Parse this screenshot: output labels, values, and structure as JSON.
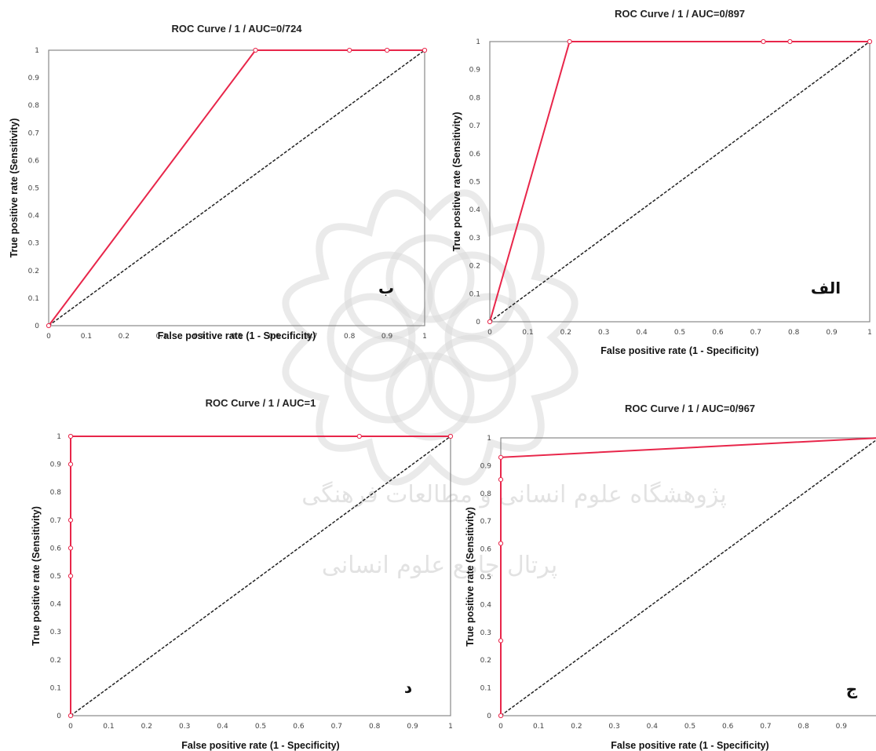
{
  "chart_data": [
    {
      "type": "line",
      "title": "ROC Curve / 1 / AUC=0/724",
      "xlabel": "False positive rate (1 - Specificity)",
      "ylabel": "True positive rate (Sensitivity)",
      "panel_letter": "ب",
      "xlim": [
        0,
        1
      ],
      "ylim": [
        0,
        1
      ],
      "x_ticks": [
        "0",
        "0.1",
        "0.2",
        "0.3",
        "0.4",
        "0.5",
        "0.6",
        "0.7",
        "0.8",
        "0.9",
        "1"
      ],
      "y_ticks": [
        "0",
        "0.1",
        "0.2",
        "0.3",
        "0.4",
        "0.5",
        "0.6",
        "0.7",
        "0.8",
        "0.9",
        "1"
      ],
      "roc_x": [
        0,
        0.55,
        0.8,
        0.9,
        1
      ],
      "roc_y": [
        0,
        1,
        1,
        1,
        1
      ]
    },
    {
      "type": "line",
      "title": "ROC Curve / 1 / AUC=0/897",
      "xlabel": "False positive rate (1 - Specificity)",
      "ylabel": "True positive rate (Sensitivity)",
      "panel_letter": "الف",
      "xlim": [
        0,
        1
      ],
      "ylim": [
        0,
        1
      ],
      "x_ticks": [
        "0",
        "0.1",
        "0.2",
        "0.3",
        "0.4",
        "0.5",
        "0.6",
        "0.7",
        "0.8",
        "0.9",
        "1"
      ],
      "y_ticks": [
        "0",
        "0.1",
        "0.2",
        "0.3",
        "0.4",
        "0.5",
        "0.6",
        "0.7",
        "0.8",
        "0.9",
        "1"
      ],
      "roc_x": [
        0,
        0.21,
        0.72,
        0.79,
        1
      ],
      "roc_y": [
        0,
        1,
        1,
        1,
        1
      ]
    },
    {
      "type": "line",
      "title": "ROC Curve / 1 / AUC=1",
      "xlabel": "False positive rate (1 - Specificity)",
      "ylabel": "True positive rate (Sensitivity)",
      "panel_letter": "د",
      "xlim": [
        0,
        1
      ],
      "ylim": [
        0,
        1
      ],
      "x_ticks": [
        "0",
        "0.1",
        "0.2",
        "0.3",
        "0.4",
        "0.5",
        "0.6",
        "0.7",
        "0.8",
        "0.9",
        "1"
      ],
      "y_ticks": [
        "0",
        "0.1",
        "0.2",
        "0.3",
        "0.4",
        "0.5",
        "0.6",
        "0.7",
        "0.8",
        "0.9",
        "1"
      ],
      "roc_x": [
        0,
        0,
        0,
        0,
        0,
        0,
        0.76,
        1
      ],
      "roc_y": [
        0,
        0.5,
        0.6,
        0.7,
        0.9,
        1,
        1,
        1
      ]
    },
    {
      "type": "line",
      "title": "ROC Curve / 1 / AUC=0/967",
      "xlabel": "False positive rate (1 - Specificity)",
      "ylabel": "True positive rate (Sensitivity)",
      "panel_letter": "ج",
      "xlim": [
        0,
        1
      ],
      "ylim": [
        0,
        1
      ],
      "x_ticks": [
        "0",
        "0.1",
        "0.2",
        "0.3",
        "0.4",
        "0.5",
        "0.6",
        "0.7",
        "0.8",
        "0.9"
      ],
      "y_ticks": [
        "0",
        "0.1",
        "0.2",
        "0.3",
        "0.4",
        "0.5",
        "0.6",
        "0.7",
        "0.8",
        "0.9",
        "1"
      ],
      "roc_x": [
        0,
        0,
        0,
        0,
        0,
        1
      ],
      "roc_y": [
        0,
        0.27,
        0.62,
        0.85,
        0.93,
        1
      ]
    }
  ],
  "watermark": {
    "line1": "پژوهشگاه علوم انسانی و مطالعات فرهنگی",
    "line2": "پرتال جامع علوم انسانی"
  }
}
